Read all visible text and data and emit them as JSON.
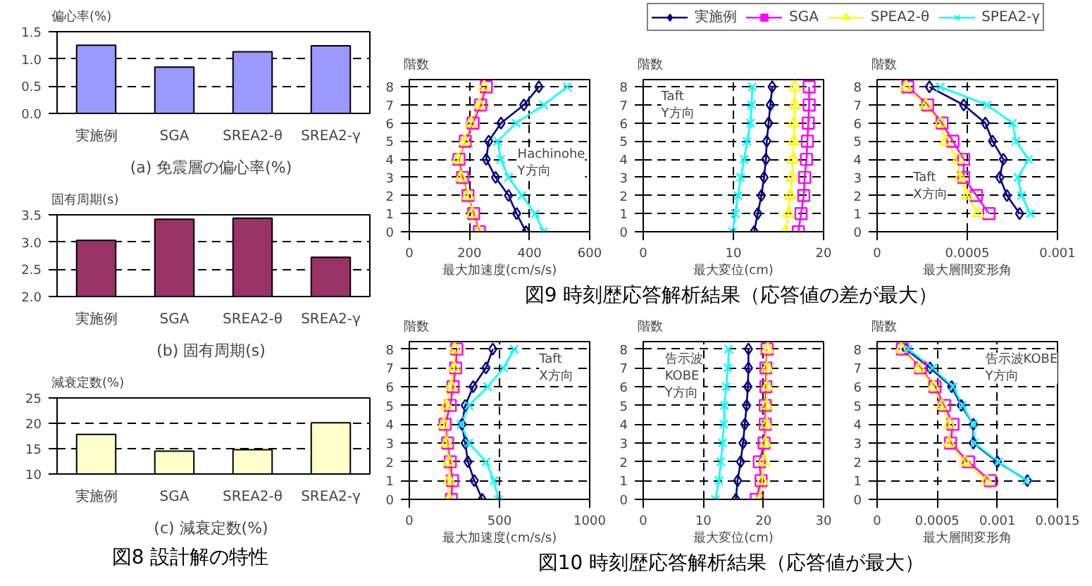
{
  "chart_data": [
    {
      "type": "bar",
      "title": "(a)  免震層の偏心率(%)",
      "ylabel": "偏心率(%)",
      "categories": [
        "実施例",
        "SGA",
        "SREA2-θ",
        "SREA2-γ"
      ],
      "values": [
        1.25,
        0.85,
        1.13,
        1.24
      ],
      "color": "#9999ff",
      "ylim": [
        0,
        1.5
      ],
      "yticks": [
        {
          "value": 0,
          "label": "0.0"
        },
        {
          "value": 0.5,
          "label": "0.5"
        },
        {
          "value": 1,
          "label": "1.0"
        },
        {
          "value": 1.5,
          "label": "1.5"
        }
      ],
      "grid": "y"
    },
    {
      "type": "bar",
      "title": "(b)  固有周期(s)",
      "ylabel": "固有周期(s)",
      "categories": [
        "実施例",
        "SGA",
        "SREA2-θ",
        "SREA2-γ"
      ],
      "values": [
        3.03,
        3.42,
        3.44,
        2.72
      ],
      "color": "#993366",
      "ylim": [
        2,
        3.5
      ],
      "yticks": [
        {
          "value": 2,
          "label": "2.0"
        },
        {
          "value": 2.5,
          "label": "2.5"
        },
        {
          "value": 3,
          "label": "3.0"
        },
        {
          "value": 3.5,
          "label": "3.5"
        }
      ],
      "grid": "y"
    },
    {
      "type": "bar",
      "title": "(c)  減衰定数(%)",
      "ylabel": "減衰定数(%)",
      "categories": [
        "実施例",
        "SGA",
        "SREA2-θ",
        "SREA2-γ"
      ],
      "values": [
        17.8,
        14.5,
        14.8,
        20.1
      ],
      "color": "#ffffcc",
      "ylim": [
        10,
        25
      ],
      "yticks": [
        10,
        15,
        20,
        25
      ],
      "grid": "y",
      "annotations": [
        "図8  設計解の特性"
      ]
    },
    {
      "type": "line",
      "xlabel": "最大加速度(cm/s/s)",
      "ylabel": "階数",
      "xlim": [
        0,
        600
      ],
      "xticks": [
        0,
        200,
        400,
        600
      ],
      "ylim": [
        0,
        8.4
      ],
      "yticks": [
        0,
        1,
        2,
        3,
        4,
        5,
        6,
        7,
        8
      ],
      "grid": true,
      "legend": "top",
      "annotations": [
        "Hachinohe\nY方向"
      ],
      "series": [
        {
          "name": "実施例",
          "color": "#000080",
          "marker": "diamond",
          "x": [
            388,
            357,
            330,
            287,
            256,
            264,
            305,
            381,
            431
          ],
          "values": [
            0,
            1,
            2,
            3,
            4,
            5,
            6,
            7,
            8
          ]
        },
        {
          "name": "SGA",
          "color": "#ff00ff",
          "marker": "square",
          "x": [
            233,
            214,
            195,
            177,
            165,
            186,
            212,
            237,
            256
          ],
          "values": [
            0,
            1,
            2,
            3,
            4,
            5,
            6,
            7,
            8
          ]
        },
        {
          "name": "SPEA2-θ",
          "color": "#ffff00",
          "marker": "triangle",
          "x": [
            231,
            209,
            195,
            172,
            162,
            184,
            205,
            233,
            249
          ],
          "values": [
            0,
            1,
            2,
            3,
            4,
            5,
            6,
            7,
            8
          ]
        },
        {
          "name": "SPEA2-γ",
          "color": "#00ffff",
          "marker": "cross",
          "x": [
            447,
            418,
            374,
            330,
            304,
            294,
            355,
            447,
            525
          ],
          "values": [
            0,
            1,
            2,
            3,
            4,
            5,
            6,
            7,
            8
          ]
        }
      ]
    },
    {
      "type": "line",
      "xlabel": "最大変位(cm)",
      "ylabel": "階数",
      "xlim": [
        0,
        20
      ],
      "xticks": [
        0,
        10,
        20
      ],
      "ylim": [
        0,
        8.4
      ],
      "yticks": [
        0,
        1,
        2,
        3,
        4,
        5,
        6,
        7,
        8
      ],
      "grid": true,
      "annotations": [
        "Taft\nY方向",
        "図9  時刻歴応答解析結果（応答値の差が最大）"
      ],
      "series": [
        {
          "color": "#000080",
          "marker": "diamond",
          "x": [
            12.3,
            12.7,
            13.1,
            13.4,
            13.6,
            13.7,
            13.9,
            14.1,
            14.3
          ],
          "values": [
            0,
            1,
            2,
            3,
            4,
            5,
            6,
            7,
            8
          ]
        },
        {
          "color": "#ff00ff",
          "marker": "square",
          "x": [
            17.2,
            17.5,
            17.8,
            17.9,
            18.1,
            18.2,
            18.3,
            18.4,
            18.4
          ],
          "values": [
            0,
            1,
            2,
            3,
            4,
            5,
            6,
            7,
            8
          ]
        },
        {
          "color": "#ffff00",
          "marker": "triangle",
          "x": [
            15.8,
            16.1,
            16.3,
            16.5,
            16.6,
            16.7,
            16.7,
            16.8,
            16.8
          ],
          "values": [
            0,
            1,
            2,
            3,
            4,
            5,
            6,
            7,
            8
          ]
        },
        {
          "color": "#00ffff",
          "marker": "cross",
          "x": [
            9.9,
            10.2,
            10.5,
            10.8,
            11.2,
            11.5,
            11.9,
            12.0,
            12.1
          ],
          "values": [
            0,
            1,
            2,
            3,
            4,
            5,
            6,
            7,
            8
          ]
        }
      ]
    },
    {
      "type": "line",
      "xlabel": "最大層間変形角",
      "ylabel": "階数",
      "xlim": [
        0,
        0.001
      ],
      "xticks": [
        0,
        0.0005,
        0.001
      ],
      "ylim": [
        0,
        8.4
      ],
      "yticks": [
        0,
        1,
        2,
        3,
        4,
        5,
        6,
        7,
        8
      ],
      "grid": true,
      "annotations": [
        "Taft\nX方向"
      ],
      "series": [
        {
          "color": "#000080",
          "marker": "diamond",
          "x": [
            0.00079,
            0.00072,
            0.00068,
            0.0007,
            0.00064,
            0.0006,
            0.00048,
            0.00029
          ],
          "values": [
            1,
            2,
            3,
            4,
            5,
            6,
            7,
            8
          ]
        },
        {
          "color": "#ff00ff",
          "marker": "square",
          "x": [
            0.00062,
            0.00055,
            0.00048,
            0.00048,
            0.00042,
            0.00036,
            0.00028,
            0.00017
          ],
          "values": [
            1,
            2,
            3,
            4,
            5,
            6,
            7,
            8
          ]
        },
        {
          "color": "#ffff00",
          "marker": "triangle",
          "x": [
            0.00056,
            0.0005,
            0.00046,
            0.00045,
            0.00038,
            0.00035,
            0.00027,
            0.00016
          ],
          "values": [
            1,
            2,
            3,
            4,
            5,
            6,
            7,
            8
          ]
        },
        {
          "color": "#00ffff",
          "marker": "cross",
          "x": [
            0.00085,
            0.0008,
            0.00078,
            0.00084,
            0.00077,
            0.00075,
            0.00061,
            0.00035
          ],
          "values": [
            1,
            2,
            3,
            4,
            5,
            6,
            7,
            8
          ]
        }
      ]
    },
    {
      "type": "line",
      "xlabel": "最大加速度(cm/s/s)",
      "ylabel": "階数",
      "xlim": [
        0,
        1000
      ],
      "xticks": [
        0,
        500,
        1000
      ],
      "ylim": [
        0,
        8.4
      ],
      "yticks": [
        0,
        1,
        2,
        3,
        4,
        5,
        6,
        7,
        8
      ],
      "grid": true,
      "annotations": [
        "Taft\nX方向"
      ],
      "series": [
        {
          "color": "#000080",
          "marker": "diamond",
          "x": [
            404,
            360,
            325,
            310,
            292,
            310,
            354,
            425,
            463
          ],
          "values": [
            0,
            1,
            2,
            3,
            4,
            5,
            6,
            7,
            8
          ]
        },
        {
          "color": "#ff00ff",
          "marker": "square",
          "x": [
            233,
            239,
            227,
            212,
            198,
            227,
            242,
            257,
            263
          ],
          "values": [
            0,
            1,
            2,
            3,
            4,
            5,
            6,
            7,
            8
          ]
        },
        {
          "color": "#ffff00",
          "marker": "triangle",
          "x": [
            221,
            221,
            218,
            207,
            192,
            204,
            233,
            248,
            251
          ],
          "values": [
            0,
            1,
            2,
            3,
            4,
            5,
            6,
            7,
            8
          ]
        },
        {
          "color": "#00ffff",
          "marker": "cross",
          "x": [
            493,
            469,
            425,
            330,
            286,
            330,
            434,
            522,
            581
          ],
          "values": [
            0,
            1,
            2,
            3,
            4,
            5,
            6,
            7,
            8
          ]
        }
      ]
    },
    {
      "type": "line",
      "xlabel": "最大変位(cm)",
      "ylabel": "階数",
      "xlim": [
        0,
        30
      ],
      "xticks": [
        0,
        10,
        20,
        30
      ],
      "ylim": [
        0,
        8.4
      ],
      "yticks": [
        0,
        1,
        2,
        3,
        4,
        5,
        6,
        7,
        8
      ],
      "grid": true,
      "annotations": [
        "告示波\nKOBE\nY方向",
        "図10  時刻歴応答解析結果（応答値が最大）"
      ],
      "series": [
        {
          "color": "#000080",
          "marker": "diamond",
          "x": [
            15.4,
            15.7,
            16.2,
            16.6,
            16.9,
            17.2,
            17.4,
            17.5,
            17.5
          ],
          "values": [
            0,
            1,
            2,
            3,
            4,
            5,
            6,
            7,
            8
          ]
        },
        {
          "color": "#ff00ff",
          "marker": "square",
          "x": [
            18.8,
            19.6,
            19.3,
            20.1,
            20.3,
            20.3,
            20.4,
            20.4,
            20.6
          ],
          "values": [
            0,
            1,
            2,
            3,
            4,
            5,
            6,
            7,
            8
          ]
        },
        {
          "color": "#ffff00",
          "marker": "triangle",
          "x": [
            19.4,
            19.8,
            20.0,
            20.3,
            20.5,
            20.5,
            20.6,
            20.6,
            20.7
          ],
          "values": [
            0,
            1,
            2,
            3,
            4,
            5,
            6,
            7,
            8
          ]
        },
        {
          "color": "#00ffff",
          "marker": "cross",
          "x": [
            12.0,
            12.6,
            12.9,
            13.2,
            13.4,
            13.5,
            13.8,
            14.1,
            14.2
          ],
          "values": [
            0,
            1,
            2,
            3,
            4,
            5,
            6,
            7,
            8
          ]
        }
      ]
    },
    {
      "type": "line",
      "xlabel": "最大層間変形角",
      "ylabel": "階数",
      "xlim": [
        0,
        0.0015
      ],
      "xticks": [
        0,
        0.0005,
        0.001,
        0.0015
      ],
      "ylim": [
        0,
        8.4
      ],
      "yticks": [
        0,
        1,
        2,
        3,
        4,
        5,
        6,
        7,
        8
      ],
      "grid": true,
      "annotations": [
        "告示波KOBE\nY方向"
      ],
      "series": [
        {
          "color": "#000080",
          "marker": "diamond",
          "x": [
            0.00125,
            0.001,
            0.0008,
            0.0008,
            0.0007,
            0.00062,
            0.00044,
            0.00024
          ],
          "values": [
            1,
            2,
            3,
            4,
            5,
            6,
            7,
            8
          ]
        },
        {
          "color": "#ff00ff",
          "marker": "square",
          "x": [
            0.00094,
            0.00076,
            0.00061,
            0.00063,
            0.00056,
            0.00048,
            0.00036,
            0.00021
          ],
          "values": [
            1,
            2,
            3,
            4,
            5,
            6,
            7,
            8
          ]
        },
        {
          "color": "#ffff00",
          "marker": "triangle",
          "x": [
            0.00091,
            0.00073,
            0.0006,
            0.0006,
            0.00054,
            0.00047,
            0.00035,
            0.0002
          ],
          "values": [
            1,
            2,
            3,
            4,
            5,
            6,
            7,
            8
          ]
        },
        {
          "color": "#00ffff",
          "marker": "cross",
          "x": [
            0.00124,
            0.00101,
            0.00081,
            0.0008,
            0.00071,
            0.00063,
            0.00046,
            0.00026
          ],
          "values": [
            1,
            2,
            3,
            4,
            5,
            6,
            7,
            8
          ]
        }
      ]
    }
  ]
}
